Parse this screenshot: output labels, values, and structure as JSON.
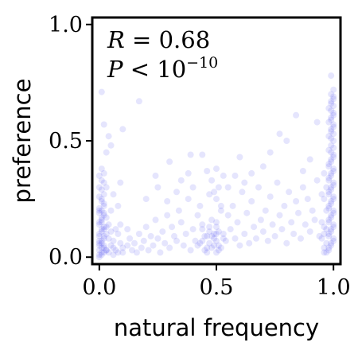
{
  "chart_data": {
    "type": "scatter",
    "xlabel": "natural frequency",
    "ylabel": "preference",
    "xlim": [
      -0.03,
      1.03
    ],
    "ylim": [
      -0.03,
      1.03
    ],
    "x_ticks": [
      {
        "value": 0.0,
        "label": "0.0"
      },
      {
        "value": 0.5,
        "label": "0.5"
      },
      {
        "value": 1.0,
        "label": "1.0"
      }
    ],
    "y_ticks": [
      {
        "value": 0.0,
        "label": "0.0"
      },
      {
        "value": 0.5,
        "label": "0.5"
      },
      {
        "value": 1.0,
        "label": "1.0"
      }
    ],
    "grid": false,
    "annotation": {
      "line1": {
        "var": "R",
        "rest": " = 0.68"
      },
      "line2": {
        "var": "P",
        "rest": " < 10",
        "exponent": "−10"
      }
    },
    "marker_color": "#3333ee",
    "marker_opacity": 0.13,
    "series": [
      {
        "points": [
          [
            0.01,
            0.02
          ],
          [
            0.0,
            0.05
          ],
          [
            0.02,
            0.08
          ],
          [
            0.01,
            0.11
          ],
          [
            0.0,
            0.14
          ],
          [
            0.03,
            0.17
          ],
          [
            0.01,
            0.2
          ],
          [
            0.02,
            0.23
          ],
          [
            0.0,
            0.26
          ],
          [
            0.01,
            0.29
          ],
          [
            0.02,
            0.32
          ],
          [
            0.0,
            0.35
          ],
          [
            0.01,
            0.38
          ],
          [
            0.03,
            0.03
          ],
          [
            0.0,
            0.07
          ],
          [
            0.02,
            0.12
          ],
          [
            0.01,
            0.16
          ],
          [
            0.0,
            0.19
          ],
          [
            0.02,
            0.22
          ],
          [
            0.01,
            0.25
          ],
          [
            0.03,
            0.1
          ],
          [
            0.0,
            0.01
          ],
          [
            0.02,
            0.04
          ],
          [
            0.01,
            0.06
          ],
          [
            0.03,
            0.13
          ],
          [
            0.0,
            0.09
          ],
          [
            0.01,
            0.15
          ],
          [
            0.02,
            0.18
          ],
          [
            0.0,
            0.21
          ],
          [
            0.01,
            0.24
          ],
          [
            0.02,
            0.27
          ],
          [
            0.0,
            0.3
          ],
          [
            0.01,
            0.33
          ],
          [
            0.02,
            0.36
          ],
          [
            0.0,
            0.0
          ],
          [
            0.01,
            0.01
          ],
          [
            0.02,
            0.02
          ],
          [
            0.0,
            0.03
          ],
          [
            0.01,
            0.04
          ],
          [
            0.02,
            0.05
          ],
          [
            0.0,
            0.06
          ],
          [
            0.01,
            0.07
          ],
          [
            0.02,
            0.09
          ],
          [
            0.0,
            0.1
          ],
          [
            0.01,
            0.12
          ],
          [
            0.02,
            0.13
          ],
          [
            0.0,
            0.15
          ],
          [
            0.01,
            0.17
          ],
          [
            0.02,
            0.19
          ],
          [
            0.0,
            0.2
          ],
          [
            0.04,
            0.02
          ],
          [
            0.05,
            0.05
          ],
          [
            0.06,
            0.01
          ],
          [
            0.04,
            0.08
          ],
          [
            0.05,
            0.11
          ],
          [
            0.06,
            0.04
          ],
          [
            0.07,
            0.03
          ],
          [
            0.04,
            0.14
          ],
          [
            0.05,
            0.2
          ],
          [
            0.06,
            0.07
          ],
          [
            0.08,
            0.02
          ],
          [
            0.09,
            0.06
          ],
          [
            0.1,
            0.04
          ],
          [
            0.08,
            0.1
          ],
          [
            0.09,
            0.14
          ],
          [
            0.1,
            0.02
          ],
          [
            0.12,
            0.05
          ],
          [
            0.13,
            0.08
          ],
          [
            0.12,
            0.12
          ],
          [
            0.14,
            0.03
          ],
          [
            0.01,
            0.71
          ],
          [
            0.03,
            0.45
          ],
          [
            0.02,
            0.57
          ],
          [
            0.04,
            0.52
          ],
          [
            0.05,
            0.48
          ],
          [
            0.03,
            0.3
          ],
          [
            0.06,
            0.27
          ],
          [
            0.07,
            0.12
          ],
          [
            0.08,
            0.22
          ],
          [
            0.09,
            0.32
          ],
          [
            0.15,
            0.06
          ],
          [
            0.16,
            0.02
          ],
          [
            0.17,
            0.1
          ],
          [
            0.18,
            0.04
          ],
          [
            0.19,
            0.07
          ],
          [
            0.2,
            0.13
          ],
          [
            0.21,
            0.03
          ],
          [
            0.22,
            0.09
          ],
          [
            0.23,
            0.05
          ],
          [
            0.24,
            0.16
          ],
          [
            0.25,
            0.08
          ],
          [
            0.26,
            0.02
          ],
          [
            0.27,
            0.11
          ],
          [
            0.28,
            0.06
          ],
          [
            0.29,
            0.18
          ],
          [
            0.3,
            0.04
          ],
          [
            0.31,
            0.13
          ],
          [
            0.32,
            0.09
          ],
          [
            0.33,
            0.07
          ],
          [
            0.34,
            0.2
          ],
          [
            0.35,
            0.15
          ],
          [
            0.36,
            0.05
          ],
          [
            0.37,
            0.1
          ],
          [
            0.38,
            0.25
          ],
          [
            0.39,
            0.03
          ],
          [
            0.4,
            0.12
          ],
          [
            0.41,
            0.07
          ],
          [
            0.42,
            0.18
          ],
          [
            0.43,
            0.06
          ],
          [
            0.44,
            0.14
          ],
          [
            0.45,
            0.09
          ],
          [
            0.46,
            0.04
          ],
          [
            0.47,
            0.11
          ],
          [
            0.48,
            0.16
          ],
          [
            0.49,
            0.08
          ],
          [
            0.5,
            0.13
          ],
          [
            0.51,
            0.05
          ],
          [
            0.52,
            0.2
          ],
          [
            0.53,
            0.1
          ],
          [
            0.54,
            0.07
          ],
          [
            0.42,
            0.05
          ],
          [
            0.44,
            0.07
          ],
          [
            0.45,
            0.03
          ],
          [
            0.46,
            0.09
          ],
          [
            0.47,
            0.06
          ],
          [
            0.48,
            0.04
          ],
          [
            0.49,
            0.1
          ],
          [
            0.5,
            0.02
          ],
          [
            0.5,
            0.07
          ],
          [
            0.51,
            0.11
          ],
          [
            0.52,
            0.04
          ],
          [
            0.53,
            0.08
          ],
          [
            0.47,
            0.13
          ],
          [
            0.48,
            0.09
          ],
          [
            0.49,
            0.05
          ],
          [
            0.5,
            0.15
          ],
          [
            0.51,
            0.03
          ],
          [
            0.44,
            0.12
          ],
          [
            0.46,
            0.02
          ],
          [
            0.5,
            0.1
          ],
          [
            0.5,
            0.25
          ],
          [
            0.51,
            0.3
          ],
          [
            0.49,
            0.28
          ],
          [
            0.52,
            0.22
          ],
          [
            0.48,
            0.33
          ],
          [
            0.5,
            0.38
          ],
          [
            0.47,
            0.27
          ],
          [
            0.53,
            0.35
          ],
          [
            0.55,
            0.18
          ],
          [
            0.56,
            0.12
          ],
          [
            0.57,
            0.22
          ],
          [
            0.58,
            0.08
          ],
          [
            0.59,
            0.15
          ],
          [
            0.6,
            0.05
          ],
          [
            0.61,
            0.28
          ],
          [
            0.62,
            0.1
          ],
          [
            0.63,
            0.19
          ],
          [
            0.64,
            0.06
          ],
          [
            0.65,
            0.24
          ],
          [
            0.66,
            0.13
          ],
          [
            0.67,
            0.08
          ],
          [
            0.68,
            0.3
          ],
          [
            0.69,
            0.16
          ],
          [
            0.7,
            0.11
          ],
          [
            0.71,
            0.2
          ],
          [
            0.72,
            0.07
          ],
          [
            0.73,
            0.26
          ],
          [
            0.74,
            0.14
          ],
          [
            0.75,
            0.09
          ],
          [
            0.76,
            0.32
          ],
          [
            0.77,
            0.18
          ],
          [
            0.78,
            0.12
          ],
          [
            0.79,
            0.22
          ],
          [
            0.8,
            0.06
          ],
          [
            0.81,
            0.28
          ],
          [
            0.82,
            0.15
          ],
          [
            0.83,
            0.1
          ],
          [
            0.84,
            0.24
          ],
          [
            0.85,
            0.19
          ],
          [
            0.86,
            0.08
          ],
          [
            0.87,
            0.3
          ],
          [
            0.88,
            0.14
          ],
          [
            0.89,
            0.25
          ],
          [
            0.9,
            0.11
          ],
          [
            0.91,
            0.2
          ],
          [
            0.92,
            0.16
          ],
          [
            0.93,
            0.33
          ],
          [
            0.94,
            0.09
          ],
          [
            0.95,
            0.27
          ],
          [
            0.96,
            0.13
          ],
          [
            0.03,
            0.03
          ],
          [
            0.44,
            0.44
          ],
          [
            0.77,
            0.53
          ],
          [
            0.84,
            0.61
          ],
          [
            0.65,
            0.36
          ],
          [
            0.6,
            0.43
          ],
          [
            0.7,
            0.39
          ],
          [
            0.87,
            0.37
          ],
          [
            0.8,
            0.5
          ],
          [
            0.17,
            0.67
          ],
          [
            0.1,
            0.55
          ],
          [
            0.24,
            0.35
          ],
          [
            0.3,
            0.41
          ],
          [
            0.35,
            0.33
          ],
          [
            0.39,
            0.44
          ],
          [
            0.55,
            0.3
          ],
          [
            0.73,
            0.45
          ],
          [
            0.9,
            0.42
          ],
          [
            0.93,
            0.58
          ],
          [
            0.96,
            0.36
          ],
          [
            0.2,
            0.25
          ],
          [
            0.25,
            0.3
          ],
          [
            0.29,
            0.24
          ],
          [
            0.33,
            0.28
          ],
          [
            0.38,
            0.36
          ],
          [
            0.4,
            0.3
          ],
          [
            0.43,
            0.22
          ],
          [
            0.46,
            0.37
          ],
          [
            0.58,
            0.35
          ],
          [
            0.62,
            0.32
          ],
          [
            0.97,
            0.02
          ],
          [
            0.98,
            0.04
          ],
          [
            0.99,
            0.06
          ],
          [
            1.0,
            0.08
          ],
          [
            0.98,
            0.1
          ],
          [
            0.99,
            0.12
          ],
          [
            1.0,
            0.14
          ],
          [
            0.98,
            0.16
          ],
          [
            0.99,
            0.18
          ],
          [
            1.0,
            0.2
          ],
          [
            0.98,
            0.22
          ],
          [
            0.99,
            0.24
          ],
          [
            1.0,
            0.26
          ],
          [
            0.98,
            0.28
          ],
          [
            0.99,
            0.3
          ],
          [
            1.0,
            0.32
          ],
          [
            0.98,
            0.34
          ],
          [
            0.99,
            0.36
          ],
          [
            1.0,
            0.38
          ],
          [
            0.98,
            0.4
          ],
          [
            0.99,
            0.42
          ],
          [
            1.0,
            0.44
          ],
          [
            0.98,
            0.46
          ],
          [
            0.99,
            0.48
          ],
          [
            1.0,
            0.5
          ],
          [
            0.98,
            0.52
          ],
          [
            0.99,
            0.54
          ],
          [
            1.0,
            0.56
          ],
          [
            0.98,
            0.58
          ],
          [
            0.99,
            0.6
          ],
          [
            1.0,
            0.62
          ],
          [
            0.98,
            0.64
          ],
          [
            0.99,
            0.66
          ],
          [
            1.0,
            0.68
          ],
          [
            0.99,
            0.7
          ],
          [
            1.0,
            0.72
          ],
          [
            0.99,
            0.78
          ],
          [
            0.98,
            0.03
          ],
          [
            0.99,
            0.05
          ],
          [
            1.0,
            0.07
          ],
          [
            0.98,
            0.09
          ],
          [
            0.99,
            0.11
          ],
          [
            1.0,
            0.13
          ],
          [
            0.98,
            0.15
          ],
          [
            0.99,
            0.17
          ],
          [
            1.0,
            0.19
          ],
          [
            0.98,
            0.21
          ],
          [
            0.99,
            0.23
          ],
          [
            1.0,
            0.25
          ],
          [
            0.98,
            0.27
          ],
          [
            0.99,
            0.29
          ],
          [
            1.0,
            0.31
          ],
          [
            0.98,
            0.33
          ],
          [
            0.99,
            0.35
          ],
          [
            1.0,
            0.37
          ],
          [
            0.98,
            0.39
          ],
          [
            0.99,
            0.41
          ],
          [
            1.0,
            0.43
          ],
          [
            0.99,
            0.45
          ],
          [
            1.0,
            0.47
          ],
          [
            0.99,
            0.51
          ],
          [
            1.0,
            0.53
          ],
          [
            0.99,
            0.55
          ],
          [
            1.0,
            0.57
          ],
          [
            0.99,
            0.59
          ],
          [
            1.0,
            0.61
          ],
          [
            0.99,
            0.63
          ],
          [
            1.0,
            0.65
          ],
          [
            0.99,
            0.67
          ],
          [
            1.0,
            0.69
          ],
          [
            0.97,
            0.06
          ],
          [
            0.96,
            0.04
          ],
          [
            0.95,
            0.08
          ],
          [
            0.97,
            0.12
          ],
          [
            0.96,
            0.02
          ],
          [
            0.95,
            0.15
          ],
          [
            0.97,
            0.2
          ],
          [
            0.96,
            0.1
          ],
          [
            0.97,
            0.3
          ],
          [
            0.96,
            0.25
          ]
        ]
      }
    ]
  }
}
